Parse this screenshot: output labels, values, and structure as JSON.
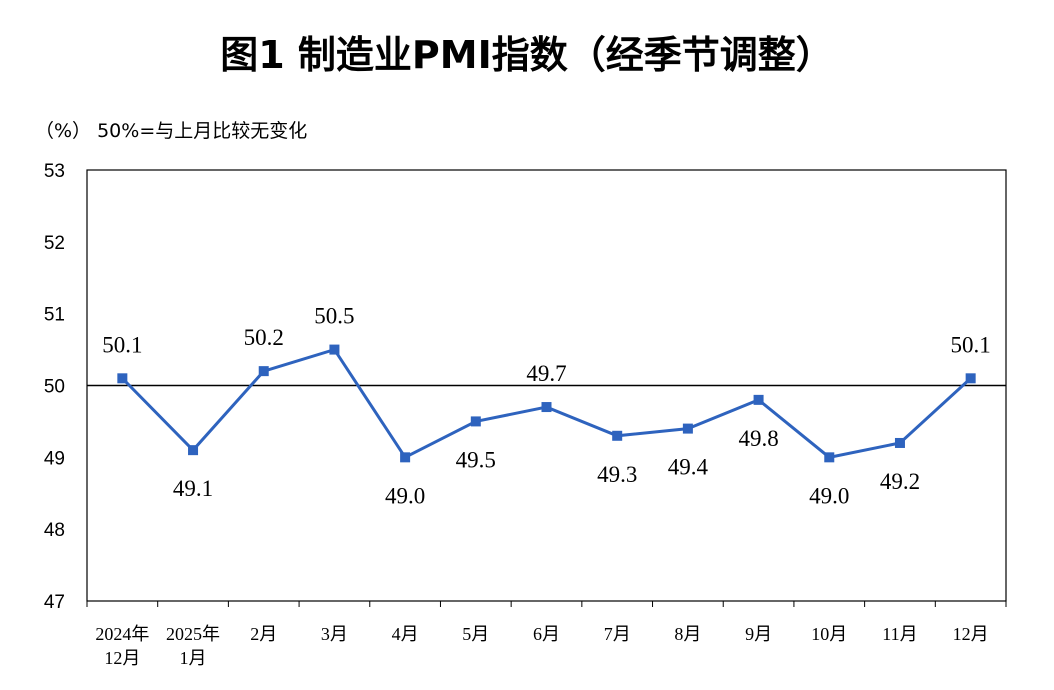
{
  "chart_data": {
    "type": "line",
    "title": "图1  制造业PMI指数（经季节调整）",
    "unit_note": "（%）  50%=与上月比较无变化",
    "categories": [
      [
        "2024年",
        "12月"
      ],
      [
        "2025年",
        "1月"
      ],
      [
        "2月"
      ],
      [
        "3月"
      ],
      [
        "4月"
      ],
      [
        "5月"
      ],
      [
        "6月"
      ],
      [
        "7月"
      ],
      [
        "8月"
      ],
      [
        "9月"
      ],
      [
        "10月"
      ],
      [
        "11月"
      ],
      [
        "12月"
      ]
    ],
    "values": [
      50.1,
      49.1,
      50.2,
      50.5,
      49.0,
      49.5,
      49.7,
      49.3,
      49.4,
      49.8,
      49.0,
      49.2,
      50.1
    ],
    "data_labels": [
      "50.1",
      "49.1",
      "50.2",
      "50.5",
      "49.0",
      "49.5",
      "49.7",
      "49.3",
      "49.4",
      "49.8",
      "49.0",
      "49.2",
      "50.1"
    ],
    "label_position": [
      "above",
      "below",
      "above",
      "above",
      "below",
      "below",
      "above",
      "below",
      "below",
      "below",
      "below",
      "below",
      "above"
    ],
    "ylim": [
      47,
      53
    ],
    "yticks": [
      "47",
      "48",
      "49",
      "50",
      "51",
      "52",
      "53"
    ],
    "reference_line": 50,
    "line_color": "#2e63be",
    "grid": false,
    "legend": "none"
  }
}
